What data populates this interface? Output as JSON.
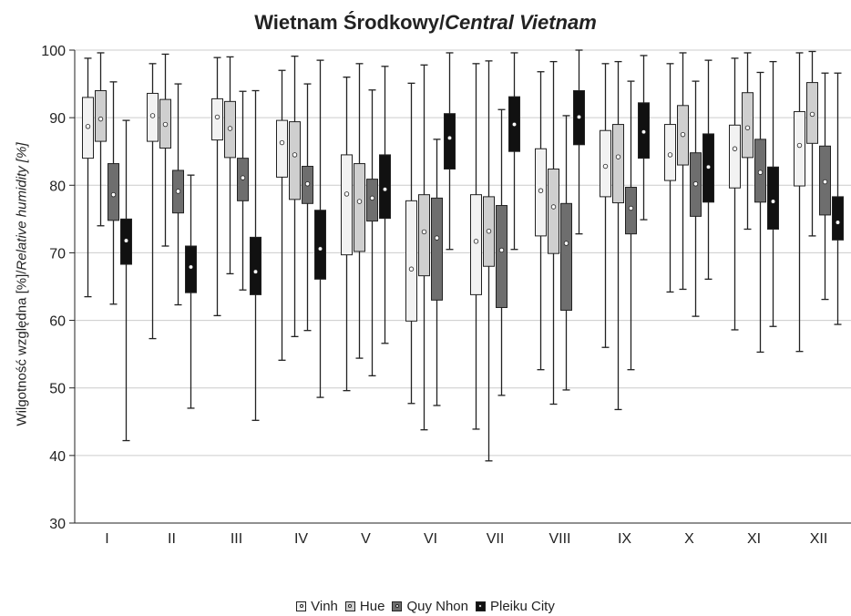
{
  "title": {
    "main": "Wietnam Środkowy/",
    "italic": "Central Vietnam"
  },
  "ylabel": {
    "main": "Wilgotność względna [%]/",
    "italic": "Relative humidity [%]"
  },
  "colors": {
    "Vinh": "#f2f2f2",
    "Hue": "#cfcfcf",
    "Quy Nhon": "#6e6e6e",
    "Pleiku City": "#111111",
    "grid": "#cccccc"
  },
  "chart_data": {
    "type": "boxplot",
    "title": "Wietnam Środkowy/Central Vietnam",
    "xlabel": "",
    "ylabel": "Wilgotność względna [%]/Relative humidity [%]",
    "ylim": [
      30,
      100
    ],
    "yticks": [
      30,
      40,
      50,
      60,
      70,
      80,
      90,
      100
    ],
    "grid": "horizontal",
    "legend_position": "bottom",
    "categories": [
      "I",
      "II",
      "III",
      "IV",
      "V",
      "VI",
      "VII",
      "VIII",
      "IX",
      "X",
      "XI",
      "XII"
    ],
    "series": [
      {
        "name": "Vinh",
        "boxes": [
          {
            "min": 63.5,
            "q1": 84,
            "mean": 88.7,
            "q3": 93,
            "max": 98.8
          },
          {
            "min": 57.3,
            "q1": 86.5,
            "mean": 90.3,
            "q3": 93.6,
            "max": 98
          },
          {
            "min": 60.7,
            "q1": 86.7,
            "mean": 90.1,
            "q3": 92.8,
            "max": 98.9
          },
          {
            "min": 54.1,
            "q1": 81.2,
            "mean": 86.3,
            "q3": 89.6,
            "max": 97
          },
          {
            "min": 49.6,
            "q1": 69.7,
            "mean": 78.7,
            "q3": 84.5,
            "max": 96
          },
          {
            "min": 47.7,
            "q1": 59.9,
            "mean": 67.6,
            "q3": 77.7,
            "max": 95.1
          },
          {
            "min": 43.9,
            "q1": 63.8,
            "mean": 71.7,
            "q3": 78.6,
            "max": 98
          },
          {
            "min": 52.7,
            "q1": 72.5,
            "mean": 79.2,
            "q3": 85.4,
            "max": 96.8
          },
          {
            "min": 56,
            "q1": 78.3,
            "mean": 82.8,
            "q3": 88.1,
            "max": 98
          },
          {
            "min": 64.2,
            "q1": 80.7,
            "mean": 84.5,
            "q3": 89,
            "max": 98
          },
          {
            "min": 58.6,
            "q1": 79.6,
            "mean": 85.4,
            "q3": 88.9,
            "max": 98.8
          },
          {
            "min": 55.4,
            "q1": 79.9,
            "mean": 85.9,
            "q3": 90.9,
            "max": 99.6
          }
        ]
      },
      {
        "name": "Hue",
        "boxes": [
          {
            "min": 74,
            "q1": 86.5,
            "mean": 89.8,
            "q3": 94,
            "max": 99.6
          },
          {
            "min": 71,
            "q1": 85.5,
            "mean": 89,
            "q3": 92.7,
            "max": 99.4
          },
          {
            "min": 66.9,
            "q1": 84.1,
            "mean": 88.4,
            "q3": 92.4,
            "max": 99
          },
          {
            "min": 57.6,
            "q1": 77.9,
            "mean": 84.5,
            "q3": 89.4,
            "max": 99.1
          },
          {
            "min": 54.4,
            "q1": 70.2,
            "mean": 77.6,
            "q3": 83.2,
            "max": 98
          },
          {
            "min": 43.8,
            "q1": 66.6,
            "mean": 73.1,
            "q3": 78.6,
            "max": 97.8
          },
          {
            "min": 39.2,
            "q1": 68,
            "mean": 73.2,
            "q3": 78.3,
            "max": 98.4
          },
          {
            "min": 47.6,
            "q1": 69.9,
            "mean": 76.8,
            "q3": 82.4,
            "max": 98.3
          },
          {
            "min": 46.8,
            "q1": 77.4,
            "mean": 84.2,
            "q3": 89,
            "max": 98.3
          },
          {
            "min": 64.6,
            "q1": 83,
            "mean": 87.5,
            "q3": 91.8,
            "max": 99.6
          },
          {
            "min": 73.5,
            "q1": 84.1,
            "mean": 88.5,
            "q3": 93.7,
            "max": 99.6
          },
          {
            "min": 72.5,
            "q1": 86.2,
            "mean": 90.5,
            "q3": 95.2,
            "max": 99.8
          }
        ]
      },
      {
        "name": "Quy Nhon",
        "boxes": [
          {
            "min": 62.4,
            "q1": 74.8,
            "mean": 78.6,
            "q3": 83.2,
            "max": 95.3
          },
          {
            "min": 62.3,
            "q1": 75.9,
            "mean": 79.1,
            "q3": 82.2,
            "max": 95
          },
          {
            "min": 64.5,
            "q1": 77.7,
            "mean": 81.1,
            "q3": 84,
            "max": 93.9
          },
          {
            "min": 58.5,
            "q1": 77.3,
            "mean": 80.2,
            "q3": 82.8,
            "max": 95
          },
          {
            "min": 51.8,
            "q1": 74.7,
            "mean": 78.1,
            "q3": 80.9,
            "max": 94.1
          },
          {
            "min": 47.4,
            "q1": 63,
            "mean": 72.2,
            "q3": 78.1,
            "max": 86.8
          },
          {
            "min": 48.9,
            "q1": 61.9,
            "mean": 70.4,
            "q3": 77,
            "max": 91.2
          },
          {
            "min": 49.7,
            "q1": 61.5,
            "mean": 71.4,
            "q3": 77.3,
            "max": 90.3
          },
          {
            "min": 52.7,
            "q1": 72.8,
            "mean": 76.6,
            "q3": 79.7,
            "max": 95.4
          },
          {
            "min": 60.6,
            "q1": 75.4,
            "mean": 80.2,
            "q3": 84.8,
            "max": 95.4
          },
          {
            "min": 55.3,
            "q1": 77.5,
            "mean": 81.9,
            "q3": 86.8,
            "max": 96.7
          },
          {
            "min": 63.1,
            "q1": 75.6,
            "mean": 80.5,
            "q3": 85.8,
            "max": 96.6
          }
        ]
      },
      {
        "name": "Pleiku City",
        "boxes": [
          {
            "min": 42.2,
            "q1": 68.3,
            "mean": 71.8,
            "q3": 75,
            "max": 89.6
          },
          {
            "min": 47,
            "q1": 64.1,
            "mean": 67.9,
            "q3": 71,
            "max": 81.5
          },
          {
            "min": 45.2,
            "q1": 63.8,
            "mean": 67.2,
            "q3": 72.3,
            "max": 94
          },
          {
            "min": 48.6,
            "q1": 66.1,
            "mean": 70.6,
            "q3": 76.3,
            "max": 98.5
          },
          {
            "min": 56.6,
            "q1": 75.1,
            "mean": 79.4,
            "q3": 84.5,
            "max": 97.6
          },
          {
            "min": 70.5,
            "q1": 82.4,
            "mean": 87,
            "q3": 90.6,
            "max": 99.6
          },
          {
            "min": 70.5,
            "q1": 85,
            "mean": 89,
            "q3": 93.1,
            "max": 99.6
          },
          {
            "min": 72.8,
            "q1": 86,
            "mean": 90.1,
            "q3": 94,
            "max": 100
          },
          {
            "min": 74.9,
            "q1": 84,
            "mean": 87.9,
            "q3": 92.2,
            "max": 99.2
          },
          {
            "min": 66.1,
            "q1": 77.5,
            "mean": 82.7,
            "q3": 87.6,
            "max": 98.5
          },
          {
            "min": 59.1,
            "q1": 73.5,
            "mean": 77.6,
            "q3": 82.7,
            "max": 98.3
          },
          {
            "min": 59.4,
            "q1": 71.9,
            "mean": 74.5,
            "q3": 78.3,
            "max": 96.6
          }
        ]
      }
    ]
  }
}
